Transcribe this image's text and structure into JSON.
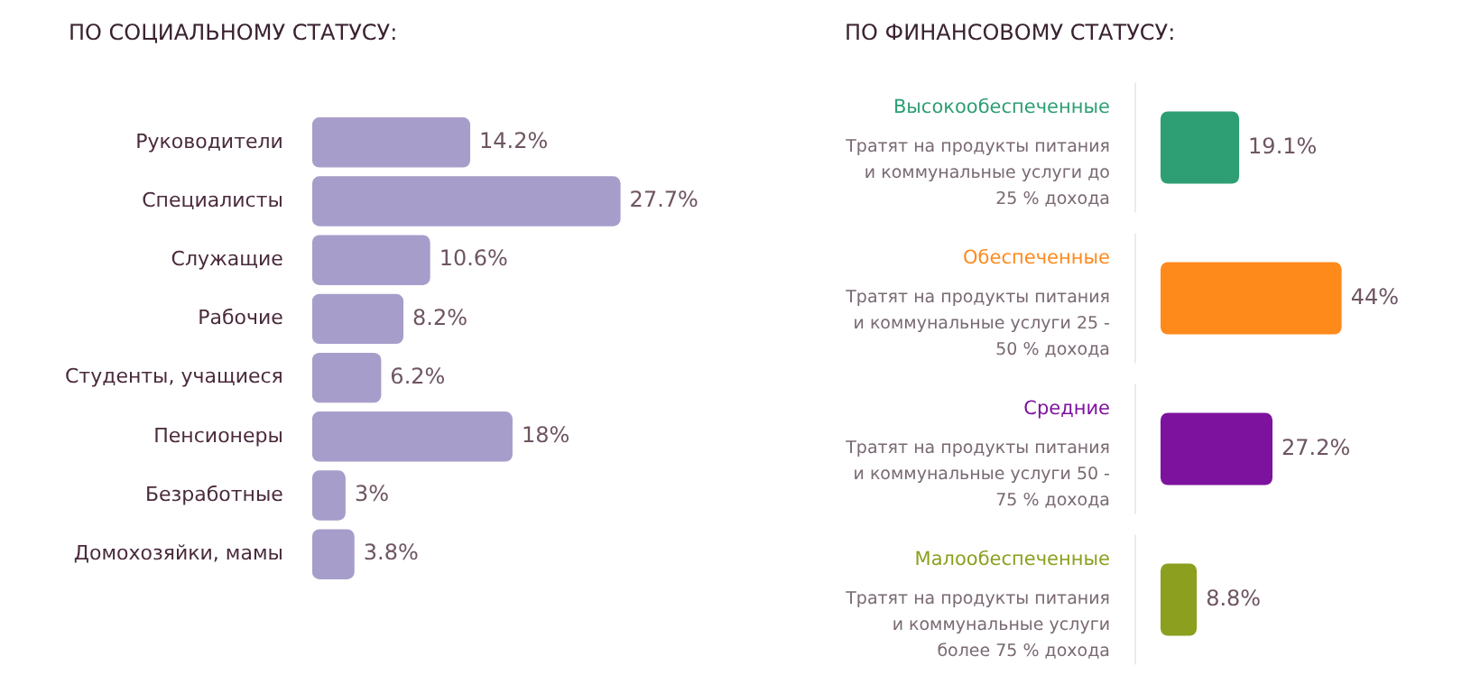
{
  "chart_data": [
    {
      "type": "bar",
      "title": "ПО СОЦИАЛЬНОМУ СТАТУСУ:",
      "orientation": "horizontal",
      "tick_labels": "y",
      "categories": [
        "Руководители",
        "Специалисты",
        "Служащие",
        "Рабочие",
        "Студенты, учащиеся",
        "Пенсионеры",
        "Безработные",
        "Домохозяйки, мамы"
      ],
      "values": [
        14.2,
        27.7,
        10.6,
        8.2,
        6.2,
        18,
        3,
        3.8
      ],
      "colors": [
        "#a79dca",
        "#a79dca",
        "#a79dca",
        "#a79dca",
        "#a79dca",
        "#a79dca",
        "#a79dca",
        "#a79dca"
      ],
      "value_labels": [
        "14.2%",
        "27.7%",
        "10.6%",
        "8.2%",
        "6.2%",
        "18%",
        "3%",
        "3.8%"
      ]
    },
    {
      "type": "bar",
      "title": "ПО ФИНАНСОВОМУ СТАТУСУ:",
      "orientation": "horizontal",
      "tick_labels": "y",
      "categories": [
        "Высокообеспеченные",
        "Обеспеченные",
        "Средние",
        "Малообеспеченные"
      ],
      "values": [
        19.1,
        44,
        27.2,
        8.8
      ],
      "colors": [
        "#2e9e74",
        "#ff8a1c",
        "#7d129e",
        "#8c9f1e"
      ],
      "value_labels": [
        "19.1%",
        "44%",
        "27.2%",
        "8.8%"
      ],
      "annotations": [
        "Тратят на продукты питания и коммунальные услуги до 25 % дохода",
        "Тратят на продукты питания и коммунальные услуги 25 - 50 % дохода",
        "Тратят на продукты питания и коммунальные услуги 50 - 75 % дохода",
        "Тратят на продукты питания и коммунальные услуги более 75 % дохода"
      ]
    }
  ]
}
